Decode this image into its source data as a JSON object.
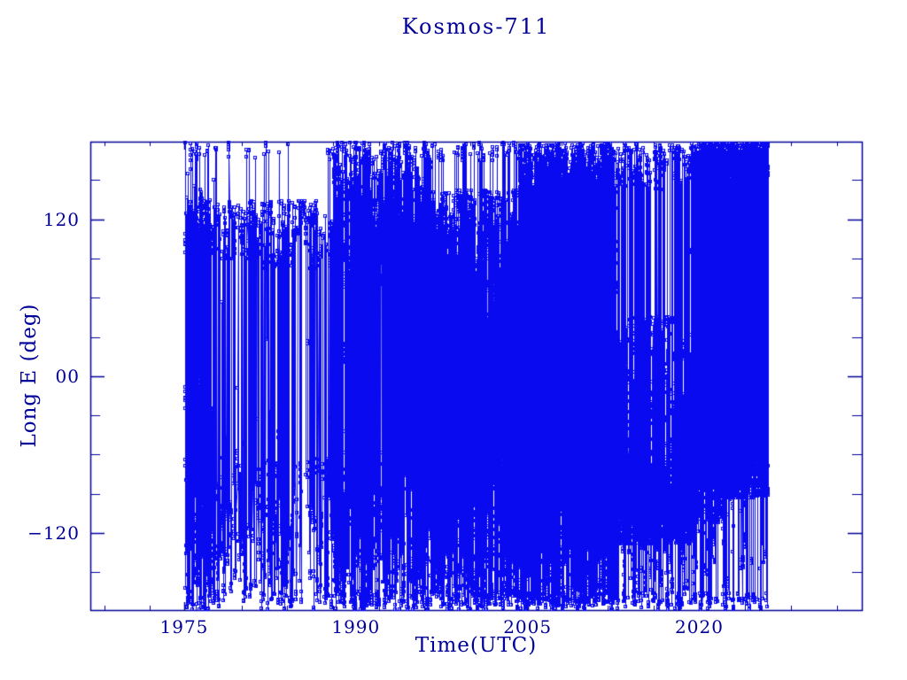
{
  "window": {
    "background": "#ffffff"
  },
  "chart_data": {
    "type": "scatter",
    "title": "Kosmos-711",
    "xlabel": "Time(UTC)",
    "ylabel": "Long E (deg)",
    "xlim": [
      1966.8,
      2034.2
    ],
    "ylim": [
      -178.9,
      179.4
    ],
    "x_major_ticks": [
      {
        "value": 1975,
        "label": "1975"
      },
      {
        "value": 1990,
        "label": "1990"
      },
      {
        "value": 2005,
        "label": "2005"
      },
      {
        "value": 2020,
        "label": "2020"
      }
    ],
    "x_minor_ticks": {
      "start": 1968,
      "end": 2032,
      "interval": 4
    },
    "y_major_ticks": [
      {
        "value": 120,
        "label": "120"
      },
      {
        "value": 0,
        "label": "00"
      },
      {
        "value": -120,
        "label": "−120"
      }
    ],
    "y_minor_ticks": {
      "interval": 30
    },
    "grid": false,
    "legend": null,
    "marker": "open-square",
    "marker_size_px": 4,
    "colors": {
      "axis": "#000099",
      "data": "#0a0af0",
      "background": "#ffffff"
    },
    "data_time_range": [
      1975.05,
      2026.0
    ],
    "seed": 7,
    "segments": [
      {
        "start": 1975.05,
        "end": 1977.6,
        "rate": 280,
        "bands": [
          {
            "c": 115,
            "hw": 22,
            "w": 0.34
          },
          {
            "c": 140,
            "hw": 35,
            "w": 0.06
          },
          {
            "c": -115,
            "hw": 55,
            "w": 0.4
          },
          {
            "c": -172,
            "hw": 7,
            "w": 0.08
          },
          {
            "c": 172,
            "hw": 7,
            "w": 0.05
          },
          {
            "c": -30,
            "hw": 55,
            "w": 0.07
          }
        ]
      },
      {
        "start": 1977.6,
        "end": 1981.2,
        "rate": 100,
        "bands": [
          {
            "c": 112,
            "hw": 22,
            "w": 0.38
          },
          {
            "c": -120,
            "hw": 52,
            "w": 0.44
          },
          {
            "c": -172,
            "hw": 7,
            "w": 0.06
          },
          {
            "c": 172,
            "hw": 7,
            "w": 0.04
          },
          {
            "c": -55,
            "hw": 12,
            "w": 0.05
          },
          {
            "c": 20,
            "hw": 40,
            "w": 0.03
          }
        ]
      },
      {
        "start": 1981.2,
        "end": 1988.0,
        "rate": 130,
        "bands": [
          {
            "c": 108,
            "hw": 26,
            "w": 0.4
          },
          {
            "c": -118,
            "hw": 55,
            "w": 0.46
          },
          {
            "c": -172,
            "hw": 7,
            "w": 0.05
          },
          {
            "c": 172,
            "hw": 7,
            "w": 0.04
          },
          {
            "c": 0,
            "hw": 50,
            "w": 0.05
          }
        ]
      },
      {
        "start": 1988.0,
        "end": 1996.5,
        "rate": 330,
        "bands": [
          {
            "c": 118,
            "hw": 50,
            "w": 0.44
          },
          {
            "c": -115,
            "hw": 60,
            "w": 0.42
          },
          {
            "c": 172,
            "hw": 7,
            "w": 0.05
          },
          {
            "c": -172,
            "hw": 7,
            "w": 0.04
          },
          {
            "c": 0,
            "hw": 45,
            "w": 0.05
          }
        ]
      },
      {
        "start": 1996.5,
        "end": 2004.3,
        "rate": 300,
        "bands": [
          {
            "c": 100,
            "hw": 42,
            "w": 0.42
          },
          {
            "c": -115,
            "hw": 60,
            "w": 0.44
          },
          {
            "c": 172,
            "hw": 7,
            "w": 0.04
          },
          {
            "c": -172,
            "hw": 7,
            "w": 0.04
          },
          {
            "c": 10,
            "hw": 45,
            "w": 0.06
          }
        ]
      },
      {
        "start": 2004.3,
        "end": 2012.7,
        "rate": 620,
        "bands": [
          {
            "c": 120,
            "hw": 57,
            "w": 0.5
          },
          {
            "c": -115,
            "hw": 60,
            "w": 0.38
          },
          {
            "c": 20,
            "hw": 40,
            "w": 0.06
          },
          {
            "c": 172,
            "hw": 6,
            "w": 0.03
          },
          {
            "c": -172,
            "hw": 6,
            "w": 0.03
          }
        ]
      },
      {
        "start": 2012.7,
        "end": 2019.3,
        "rate": 430,
        "bands": [
          {
            "c": 160,
            "hw": 17,
            "w": 0.08
          },
          {
            "c": 0,
            "hw": 45,
            "w": 0.16
          },
          {
            "c": -88,
            "hw": 40,
            "w": 0.66
          },
          {
            "c": -150,
            "hw": 25,
            "w": 0.06
          },
          {
            "c": 172,
            "hw": 6,
            "w": 0.02
          },
          {
            "c": -172,
            "hw": 6,
            "w": 0.02
          }
        ]
      },
      {
        "start": 2019.3,
        "end": 2022.3,
        "rate": 400,
        "bands": [
          {
            "c": 167,
            "hw": 11,
            "w": 0.4
          },
          {
            "c": 120,
            "hw": 25,
            "w": 0.06
          },
          {
            "c": -85,
            "hw": 27,
            "w": 0.4
          },
          {
            "c": -140,
            "hw": 33,
            "w": 0.06
          },
          {
            "c": 10,
            "hw": 50,
            "w": 0.05
          },
          {
            "c": -172,
            "hw": 6,
            "w": 0.03
          }
        ]
      },
      {
        "start": 2022.3,
        "end": 2026.0,
        "rate": 430,
        "bands": [
          {
            "c": 165,
            "hw": 13,
            "w": 0.5
          },
          {
            "c": -75,
            "hw": 18,
            "w": 0.38
          },
          {
            "c": 40,
            "hw": 55,
            "w": 0.04
          },
          {
            "c": -130,
            "hw": 40,
            "w": 0.04
          },
          {
            "c": -172,
            "hw": 6,
            "w": 0.04
          }
        ]
      }
    ]
  }
}
